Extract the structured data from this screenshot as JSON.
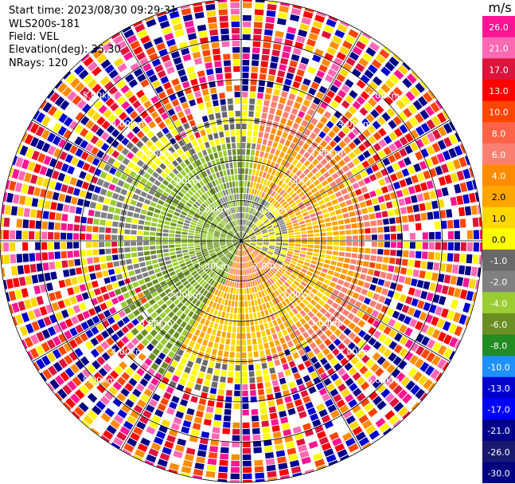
{
  "header": {
    "start_time": "Start time: 2023/08/30 09:29:31",
    "instrument": "WLS200s-181",
    "field": "Field: VEL",
    "elevation": "Elevation(deg): 35.30",
    "nrays": "NRays: 120"
  },
  "chart_data": {
    "type": "heatmap",
    "projection": "polar-ppi",
    "field": "VEL",
    "units": "m/s",
    "n_rays": 120,
    "max_range_km": 6.0,
    "range_ring_labels": [
      "1.00km",
      "2.00km",
      "3.00km",
      "4.00km",
      "5.00km"
    ],
    "range_rings_km": [
      1,
      2,
      3,
      4,
      5
    ],
    "spokes_deg": [
      0,
      30,
      60,
      90,
      120,
      150,
      180,
      210,
      240,
      270,
      300,
      330
    ],
    "colorbar": {
      "unit_label": "m/s",
      "tick_labels": [
        "26.0",
        "21.0",
        "17.0",
        "13.0",
        "10.0",
        "8.0",
        "6.0",
        "4.0",
        "2.0",
        "1.0",
        "0.0",
        "-1.0",
        "-2.0",
        "-4.0",
        "-6.0",
        "-8.0",
        "-10.0",
        "-13.0",
        "-17.0",
        "-21.0",
        "-26.0",
        "-30.0"
      ],
      "colors": [
        "#ff1493",
        "#ff69b4",
        "#dc143c",
        "#ff0000",
        "#ff4500",
        "#ff6347",
        "#fa8072",
        "#ff8c00",
        "#ffa500",
        "#ffd700",
        "#ffff00",
        "#696969",
        "#808080",
        "#9acd32",
        "#6b8e23",
        "#228b22",
        "#1e90ff",
        "#0000cd",
        "#0000ff",
        "#00008b",
        "#191970",
        "#000080"
      ]
    }
  }
}
